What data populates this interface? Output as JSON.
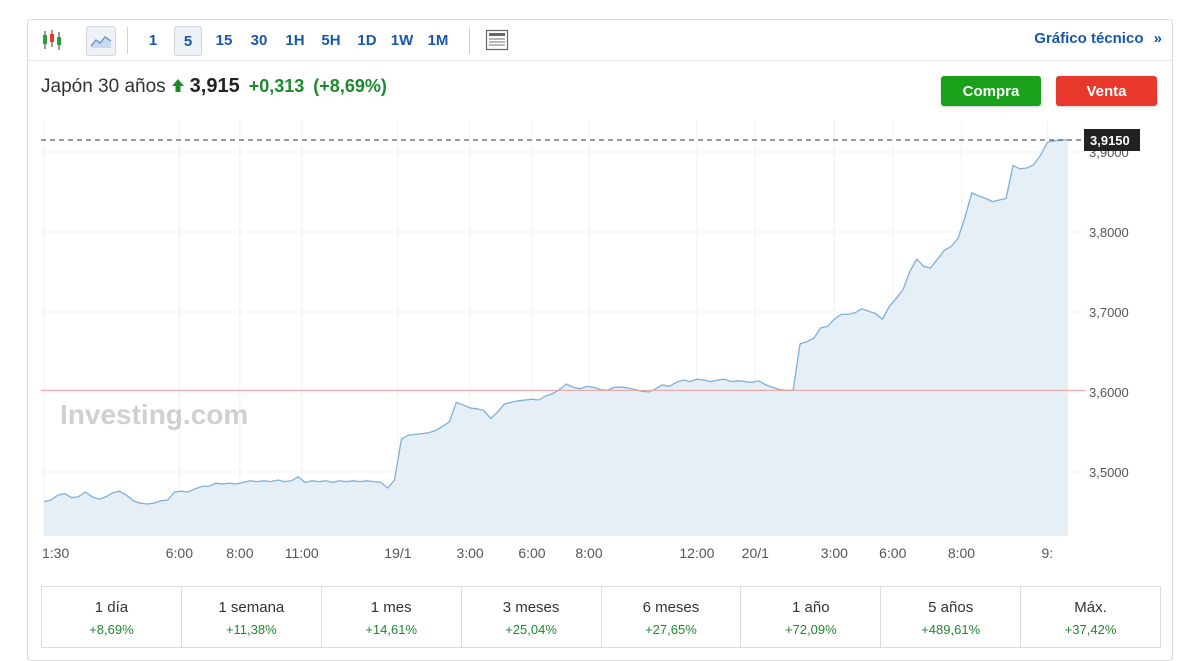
{
  "toolbar": {
    "intervals": [
      "1",
      "5",
      "15",
      "30",
      "1H",
      "5H",
      "1D",
      "1W",
      "1M"
    ],
    "active_interval": "5",
    "technical_link": "Gráfico técnico",
    "technical_arrow": "»"
  },
  "instrument": {
    "name": "Japón 30 años",
    "price": "3,915",
    "change": "+0,313",
    "change_pct": "(+8,69%)"
  },
  "actions": {
    "buy_label": "Compra",
    "sell_label": "Venta"
  },
  "colors": {
    "up": "#1e8a2e",
    "link": "#1a57a8",
    "buy": "#1aa01a",
    "sell": "#e8372b",
    "line": "#7fb0d8",
    "area": "#e6eef6",
    "ref_line": "#e8a0a0"
  },
  "chart_data": {
    "type": "area",
    "watermark": "Investing.com",
    "last_value_label": "3,9150",
    "last_value": 3.915,
    "reference_value": 3.602,
    "ylim": [
      3.42,
      3.94
    ],
    "yticks": [
      3.5,
      3.6,
      3.7,
      3.8,
      3.9
    ],
    "ytick_labels": [
      "3,5000",
      "3,6000",
      "3,7000",
      "3,8000",
      "3,9000"
    ],
    "xtick_labels": [
      "1:30",
      "6:00",
      "8:00",
      "11:00",
      "19/1",
      "3:00",
      "6:00",
      "8:00",
      "12:00",
      "20/1",
      "3:00",
      "6:00",
      "8:00",
      "9:"
    ],
    "series": [
      {
        "x": [
          0,
          1,
          2,
          3,
          4,
          5,
          6,
          7,
          8,
          9,
          10,
          11,
          12,
          13,
          14,
          15,
          16,
          17,
          18,
          19,
          20,
          21,
          22,
          23,
          24,
          25,
          26,
          27,
          28,
          29,
          30,
          31,
          32,
          33,
          34,
          35,
          36,
          37,
          38,
          39,
          40,
          41,
          42,
          43,
          44,
          45,
          46,
          47,
          48,
          49,
          50,
          51,
          52,
          53,
          54,
          55,
          56,
          57,
          58,
          59,
          60,
          61,
          62,
          63,
          64,
          65,
          66,
          67,
          68,
          69,
          70,
          71,
          72,
          73,
          74,
          75,
          76,
          77,
          78,
          79,
          80,
          81,
          82,
          83,
          84,
          85,
          86,
          87,
          88,
          89,
          90,
          91,
          92,
          93,
          94,
          95,
          96,
          97,
          98,
          99,
          100,
          101,
          102,
          103,
          104,
          105,
          106,
          107,
          108,
          109,
          110,
          111,
          112,
          113,
          114,
          115,
          116,
          117,
          118,
          119,
          120,
          121,
          122,
          123,
          124,
          125,
          126,
          127,
          128,
          129,
          130,
          131,
          132,
          133,
          134,
          135,
          136,
          137,
          138,
          139,
          140,
          141,
          142,
          143,
          144,
          145,
          146,
          147,
          148,
          149
        ],
        "values": [
          3.463,
          3.465,
          3.471,
          3.473,
          3.468,
          3.469,
          3.475,
          3.469,
          3.466,
          3.469,
          3.474,
          3.476,
          3.471,
          3.464,
          3.461,
          3.46,
          3.461,
          3.464,
          3.465,
          3.475,
          3.476,
          3.475,
          3.479,
          3.482,
          3.482,
          3.486,
          3.485,
          3.486,
          3.485,
          3.487,
          3.489,
          3.488,
          3.489,
          3.488,
          3.49,
          3.488,
          3.489,
          3.494,
          3.487,
          3.489,
          3.488,
          3.489,
          3.487,
          3.489,
          3.488,
          3.489,
          3.488,
          3.489,
          3.488,
          3.487,
          3.48,
          3.49,
          3.541,
          3.546,
          3.547,
          3.548,
          3.549,
          3.552,
          3.557,
          3.563,
          3.587,
          3.584,
          3.58,
          3.579,
          3.577,
          3.567,
          3.575,
          3.585,
          3.587,
          3.589,
          3.59,
          3.591,
          3.59,
          3.595,
          3.598,
          3.603,
          3.61,
          3.606,
          3.604,
          3.607,
          3.606,
          3.603,
          3.602,
          3.606,
          3.606,
          3.605,
          3.603,
          3.601,
          3.6,
          3.604,
          3.609,
          3.607,
          3.612,
          3.615,
          3.613,
          3.616,
          3.615,
          3.613,
          3.615,
          3.616,
          3.613,
          3.614,
          3.613,
          3.612,
          3.614,
          3.609,
          3.606,
          3.603,
          3.602,
          3.602,
          3.66,
          3.663,
          3.667,
          3.68,
          3.682,
          3.691,
          3.697,
          3.697,
          3.699,
          3.704,
          3.701,
          3.698,
          3.691,
          3.707,
          3.717,
          3.728,
          3.751,
          3.766,
          3.757,
          3.755,
          3.766,
          3.777,
          3.782,
          3.792,
          3.818,
          3.849,
          3.845,
          3.842,
          3.838,
          3.84,
          3.842,
          3.883,
          3.879,
          3.88,
          3.884,
          3.896,
          3.912,
          3.914,
          3.915,
          3.915
        ]
      }
    ],
    "grid": true
  },
  "performance": [
    {
      "label": "1 día",
      "value": "+8,69%"
    },
    {
      "label": "1 semana",
      "value": "+11,38%"
    },
    {
      "label": "1 mes",
      "value": "+14,61%"
    },
    {
      "label": "3 meses",
      "value": "+25,04%"
    },
    {
      "label": "6 meses",
      "value": "+27,65%"
    },
    {
      "label": "1 año",
      "value": "+72,09%"
    },
    {
      "label": "5 años",
      "value": "+489,61%"
    },
    {
      "label": "Máx.",
      "value": "+37,42%"
    }
  ]
}
